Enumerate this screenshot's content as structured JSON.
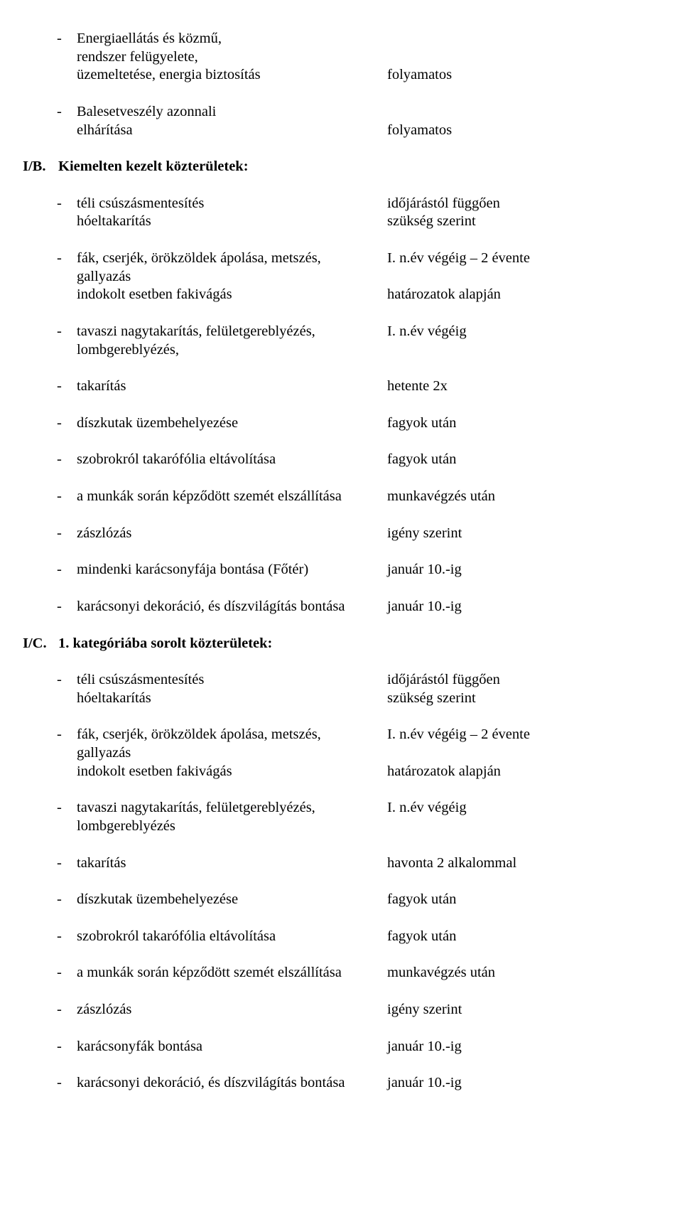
{
  "bullet_char": "-",
  "top_items": [
    {
      "left_lines": [
        "Energiaellátás és közmű,",
        "rendszer felügyelete,",
        "üzemeltetése, energia biztosítás"
      ],
      "right_lines": [
        "",
        "",
        "folyamatos"
      ]
    },
    {
      "left_lines": [
        "Balesetveszély azonnali",
        "elhárítása"
      ],
      "right_lines": [
        "",
        "folyamatos"
      ]
    }
  ],
  "section_b": {
    "label": "I/B.",
    "title": "Kiemelten kezelt közterületek:",
    "items": [
      {
        "left_lines": [
          "téli csúszásmentesítés",
          "hóeltakarítás"
        ],
        "right_lines": [
          "időjárástól függően",
          "szükség szerint"
        ]
      },
      {
        "left_lines": [
          "fák, cserjék, örökzöldek ápolása, metszés,",
          "gallyazás",
          "indokolt esetben fakivágás"
        ],
        "right_lines": [
          "I. n.év végéig – 2 évente",
          "",
          "határozatok alapján"
        ]
      },
      {
        "left_lines": [
          "tavaszi nagytakarítás, felületgereblyézés,",
          "lombgereblyézés,"
        ],
        "right_lines": [
          "I. n.év végéig",
          ""
        ]
      },
      {
        "left_lines": [
          "takarítás"
        ],
        "right_lines": [
          "hetente 2x"
        ]
      },
      {
        "left_lines": [
          "díszkutak üzembehelyezése"
        ],
        "right_lines": [
          "fagyok után"
        ]
      },
      {
        "left_lines": [
          "szobrokról takarófólia eltávolítása"
        ],
        "right_lines": [
          "fagyok után"
        ]
      },
      {
        "left_lines": [
          "a munkák során képződött szemét elszállítása"
        ],
        "right_lines": [
          "munkavégzés után"
        ]
      },
      {
        "left_lines": [
          "zászlózás"
        ],
        "right_lines": [
          "igény szerint"
        ]
      },
      {
        "left_lines": [
          "mindenki karácsonyfája bontása (Főtér)"
        ],
        "right_lines": [
          "január 10.-ig"
        ]
      },
      {
        "left_lines": [
          "karácsonyi dekoráció, és díszvilágítás bontása"
        ],
        "right_lines": [
          "január 10.-ig"
        ]
      }
    ]
  },
  "section_c": {
    "label": "I/C.",
    "title": "1. kategóriába sorolt közterületek:",
    "items": [
      {
        "left_lines": [
          "téli csúszásmentesítés",
          "hóeltakarítás"
        ],
        "right_lines": [
          "időjárástól függően",
          "szükség szerint"
        ]
      },
      {
        "left_lines": [
          "fák, cserjék, örökzöldek ápolása, metszés,",
          "gallyazás",
          "indokolt esetben fakivágás"
        ],
        "right_lines": [
          "I. n.év végéig – 2 évente",
          "",
          "határozatok alapján"
        ]
      },
      {
        "left_lines": [
          "tavaszi nagytakarítás, felületgereblyézés,",
          "lombgereblyézés"
        ],
        "right_lines": [
          "I. n.év végéig",
          ""
        ]
      },
      {
        "left_lines": [
          "takarítás"
        ],
        "right_lines": [
          "havonta 2 alkalommal"
        ]
      },
      {
        "left_lines": [
          "díszkutak üzembehelyezése"
        ],
        "right_lines": [
          "fagyok után"
        ]
      },
      {
        "left_lines": [
          "szobrokról takarófólia eltávolítása"
        ],
        "right_lines": [
          "fagyok után"
        ]
      },
      {
        "left_lines": [
          "a munkák során képződött szemét elszállítása"
        ],
        "right_lines": [
          "munkavégzés után"
        ]
      },
      {
        "left_lines": [
          "zászlózás"
        ],
        "right_lines": [
          "igény szerint"
        ]
      },
      {
        "left_lines": [
          "karácsonyfák bontása"
        ],
        "right_lines": [
          "január 10.-ig"
        ]
      },
      {
        "left_lines": [
          "karácsonyi dekoráció, és díszvilágítás bontása"
        ],
        "right_lines": [
          "január 10.-ig"
        ]
      }
    ]
  }
}
